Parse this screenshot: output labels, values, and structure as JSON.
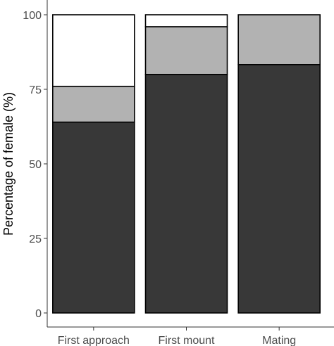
{
  "chart_data": {
    "type": "bar",
    "stacked": true,
    "categories": [
      "First approach",
      "First mount",
      "Mating"
    ],
    "series": [
      {
        "color": "#383838",
        "values": [
          64,
          80,
          83.3
        ]
      },
      {
        "color": "#b2b2b2",
        "values": [
          12,
          16,
          16.7
        ]
      },
      {
        "color": "#ffffff",
        "values": [
          24,
          4,
          0
        ]
      }
    ],
    "title": "",
    "xlabel": "",
    "ylabel": "Percentage of female (%)",
    "ylim": [
      0,
      100
    ],
    "yticks": [
      0,
      25,
      50,
      75,
      100
    ],
    "grid": false,
    "legend": "none",
    "bar_stroke_color": "#000000",
    "axis_color": "#333333"
  }
}
